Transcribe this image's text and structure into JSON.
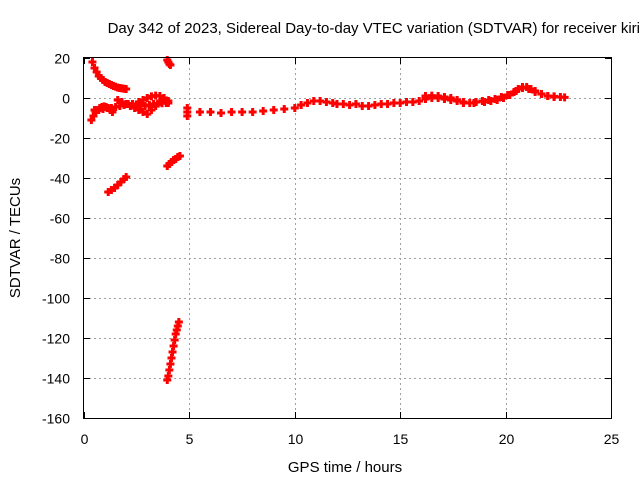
{
  "chart_data": {
    "type": "scatter",
    "title": "Day 342 of 2023, Sidereal Day-to-day VTEC variation (SDTVAR) for receiver kiri",
    "xlabel": "GPS time / hours",
    "ylabel": "SDTVAR / TECUs",
    "xlim": [
      0,
      25
    ],
    "ylim": [
      -160,
      20
    ],
    "xticks": [
      0,
      5,
      10,
      15,
      20,
      25
    ],
    "xtick_labels": [
      "0",
      "5",
      "10",
      "15",
      "20",
      "25"
    ],
    "yticks": [
      -160,
      -140,
      -120,
      -100,
      -80,
      -60,
      -40,
      -20,
      0,
      20
    ],
    "ytick_labels": [
      "-160",
      "-140",
      "-120",
      "-100",
      "-80",
      "-60",
      "-40",
      "-20",
      "0",
      "20"
    ],
    "grid": true,
    "legend": "none",
    "marker": "plus",
    "color": "#ff0000",
    "series": [
      {
        "x": [
          0.4,
          0.5,
          0.6,
          0.7,
          0.8,
          0.9,
          1.0,
          1.1,
          1.2,
          1.3,
          1.4,
          1.5,
          1.6,
          1.7,
          1.8,
          1.9,
          2.0
        ],
        "y": [
          18,
          15,
          13,
          11,
          10,
          9,
          8,
          7.5,
          7,
          6.5,
          6,
          5.6,
          5.2,
          5,
          4.8,
          4.6,
          4.5
        ]
      },
      {
        "x": [
          0.35,
          0.45,
          0.55,
          0.65,
          0.75,
          0.85,
          0.95,
          1.05,
          1.15,
          1.25,
          1.35
        ],
        "y": [
          -11,
          -9,
          -7,
          -6,
          -5,
          -4.5,
          -4.2,
          -4.5,
          -5,
          -6,
          -7
        ]
      },
      {
        "x": [
          0.5,
          0.7,
          0.9,
          1.1,
          1.3,
          1.5,
          1.7,
          1.9,
          2.1,
          2.3,
          2.5,
          2.7,
          2.9,
          3.1,
          3.3,
          3.5,
          3.7,
          3.9,
          4.0
        ],
        "y": [
          -6,
          -6,
          -5.5,
          -5,
          -5,
          -4.5,
          -4,
          -3.5,
          -3,
          -3,
          -3.2,
          -3.5,
          -4,
          -3.5,
          -3,
          -2.8,
          -2.6,
          -2.5,
          -2.5
        ]
      },
      {
        "x": [
          1.6,
          1.8,
          2.0,
          2.2,
          2.4,
          2.6,
          2.8,
          3.0,
          3.2,
          3.4,
          3.6
        ],
        "y": [
          -1,
          -2,
          -3,
          -4,
          -5,
          -6,
          -7,
          -8,
          -6,
          -4,
          -2
        ]
      },
      {
        "x": [
          2.6,
          2.8,
          3.0,
          3.2,
          3.4,
          3.6,
          3.8,
          4.0
        ],
        "y": [
          -2,
          -1,
          0,
          0.8,
          1.2,
          1.0,
          0,
          -1.5
        ]
      },
      {
        "x": [
          3.95,
          4.0,
          4.05,
          4.1
        ],
        "y": [
          19,
          18,
          17,
          16.5
        ]
      },
      {
        "x": [
          1.15,
          1.3,
          1.45,
          1.6,
          1.75,
          1.9,
          2.0
        ],
        "y": [
          -47,
          -46,
          -45,
          -43.5,
          -42,
          -40.5,
          -39.5
        ]
      },
      {
        "x": [
          3.95,
          4.05,
          4.15,
          4.25,
          4.35,
          4.45,
          4.55
        ],
        "y": [
          -34,
          -33,
          -32,
          -31,
          -30.5,
          -29.5,
          -29
        ]
      },
      {
        "x": [
          3.95,
          4.0,
          4.05,
          4.1,
          4.15,
          4.2,
          4.25,
          4.3,
          4.35,
          4.4,
          4.45,
          4.5
        ],
        "y": [
          -141,
          -139,
          -136,
          -133,
          -130,
          -127,
          -124,
          -121,
          -118,
          -116,
          -114,
          -112
        ]
      },
      {
        "x": [
          4.9,
          4.9,
          4.9
        ],
        "y": [
          -5,
          -7,
          -9
        ]
      },
      {
        "x": [
          5.5,
          6.0,
          6.5,
          7.0,
          7.5,
          8.0,
          8.5,
          9.0,
          9.5,
          10.0,
          10.3,
          10.6,
          10.9,
          11.2,
          11.5,
          11.8,
          12.0,
          12.3,
          12.6,
          12.9,
          13.2,
          13.5,
          13.8,
          14.1,
          14.4,
          14.7,
          15.0,
          15.3,
          15.6,
          15.9,
          16.2,
          16.5,
          16.8,
          17.1,
          17.4,
          17.7,
          18.0,
          18.3,
          18.6,
          18.9,
          19.2,
          19.5,
          19.8,
          20.1,
          20.4,
          20.6,
          20.8,
          21.0,
          21.2,
          21.4,
          21.7,
          22.0,
          22.3,
          22.6,
          22.8
        ],
        "y": [
          -7,
          -7,
          -7.5,
          -7,
          -7,
          -7,
          -6.5,
          -6,
          -5.5,
          -5,
          -3.5,
          -2.5,
          -1.5,
          -1.5,
          -2,
          -2.5,
          -3,
          -3,
          -3.5,
          -3,
          -4,
          -4,
          -3.5,
          -3,
          -3,
          -2.5,
          -2.5,
          -2,
          -2,
          -1.5,
          -0.5,
          0,
          0,
          -0.5,
          -1,
          -1.5,
          -2.5,
          -2.5,
          -2,
          -1.5,
          -1,
          -0.5,
          0.5,
          1.5,
          3,
          4.5,
          5.5,
          5.5,
          4.5,
          3,
          2,
          1,
          0.5,
          0.5,
          0.3
        ]
      },
      {
        "x": [
          16.2,
          16.5,
          16.8,
          17.1,
          17.4,
          17.7,
          18.0,
          18.5,
          19.0,
          19.3,
          19.6,
          19.9,
          20.2,
          20.5,
          20.8,
          21.1,
          21.4,
          21.7,
          22.0,
          22.3
        ],
        "y": [
          1,
          1.2,
          1,
          0.5,
          0,
          -1,
          -2,
          -2.5,
          -2,
          -1.5,
          -1,
          0,
          1.5,
          3.5,
          5,
          4.5,
          3.5,
          2,
          1,
          0.8
        ]
      }
    ]
  }
}
